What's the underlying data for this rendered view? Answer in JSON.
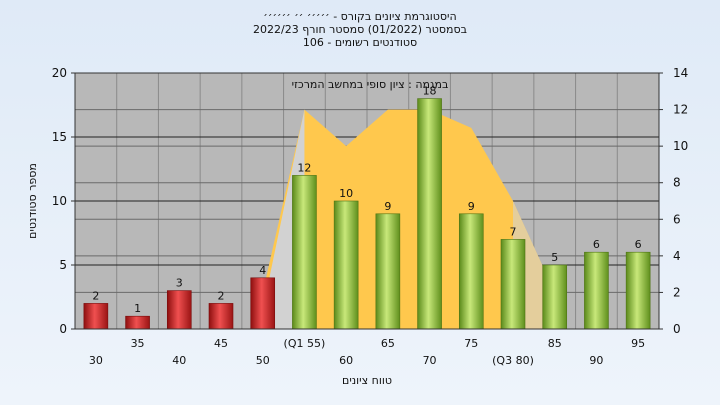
{
  "chart_data": {
    "type": "bar",
    "title_lines": [
      "היסטוגרמת ציונים בקורס - ׳׳׳׳׳ ׳׳ ׳׳׳׳׳׳",
      "בסמסטר  (01/2022)  סמסטר חורף 2022/23",
      "סטודנטים רשומים - 106"
    ],
    "xlabel": "טווח ציונים",
    "ylabel": "מספר סטודנטים",
    "annotation": "במגמה : ציון סופי במחשב המרכזי",
    "tick_labels": [
      "30",
      "35",
      "40",
      "45",
      "50",
      "(Q1 55)",
      "60",
      "65",
      "70",
      "75",
      "(Q3 80)",
      "85",
      "90",
      "95"
    ],
    "values": [
      2,
      1,
      3,
      2,
      4,
      12,
      10,
      9,
      18,
      9,
      7,
      5,
      6,
      6
    ],
    "bar_labels": [
      "2",
      "1",
      "3",
      "2",
      "4",
      "12",
      "10",
      "9",
      "18",
      "9",
      "7",
      "5",
      "6",
      "6"
    ],
    "bar_groups": [
      "low",
      "low",
      "low",
      "low",
      "low",
      "high",
      "high",
      "high",
      "high",
      "high",
      "high",
      "high",
      "high",
      "high"
    ],
    "overlay_area": {
      "x_index": [
        4,
        5,
        6,
        7,
        8,
        9,
        10,
        11
      ],
      "y_right": [
        2,
        12,
        10,
        12,
        12,
        11,
        7,
        2
      ]
    },
    "ylim_left": [
      0,
      20
    ],
    "yticks_left": [
      "0",
      "5",
      "10",
      "15",
      "20"
    ],
    "ylim_right": [
      0,
      14
    ],
    "yticks_right": [
      "0",
      "2",
      "4",
      "6",
      "8",
      "10",
      "12",
      "14"
    ],
    "grid": true,
    "colors": {
      "low_bar": "#d42828",
      "high_bar": "#7fae2e",
      "area": "#ffc84d",
      "plot_bg": "#b8b8b8"
    }
  }
}
